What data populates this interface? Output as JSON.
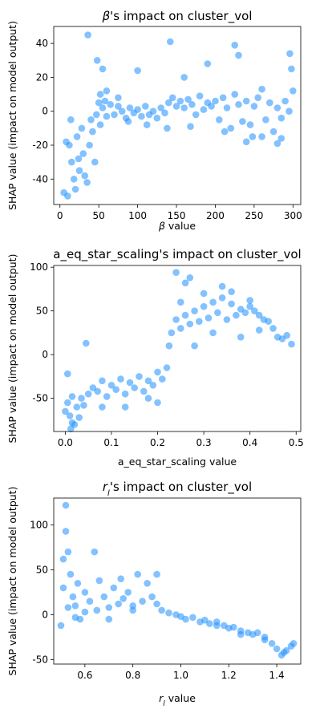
{
  "page": {
    "ylabel": "SHAP value (impact on model output)"
  },
  "chart_data": [
    {
      "type": "scatter",
      "title_prefix": "β",
      "title_suffix": "'s impact on cluster_vol",
      "xlabel_prefix": "β",
      "xlabel_suffix": " value",
      "ylabel": "SHAP value (impact on model output)",
      "xlim": [
        -8,
        310
      ],
      "ylim": [
        -55,
        50
      ],
      "xticks": [
        0,
        50,
        100,
        150,
        200,
        250,
        300
      ],
      "yticks": [
        -40,
        -20,
        0,
        20,
        40
      ],
      "grid": false,
      "marker_color": "#1e90ff",
      "points": [
        [
          5,
          -48
        ],
        [
          10,
          -50
        ],
        [
          12,
          -20
        ],
        [
          15,
          -30
        ],
        [
          18,
          -40
        ],
        [
          20,
          -46
        ],
        [
          22,
          -15
        ],
        [
          25,
          -35
        ],
        [
          28,
          -10
        ],
        [
          30,
          -25
        ],
        [
          32,
          -38
        ],
        [
          35,
          -42
        ],
        [
          38,
          -20
        ],
        [
          40,
          -5
        ],
        [
          42,
          -12
        ],
        [
          45,
          -30
        ],
        [
          47,
          -2
        ],
        [
          50,
          5
        ],
        [
          52,
          -8
        ],
        [
          55,
          2
        ],
        [
          58,
          6
        ],
        [
          60,
          -3
        ],
        [
          65,
          4
        ],
        [
          70,
          -2
        ],
        [
          75,
          3
        ],
        [
          80,
          0
        ],
        [
          85,
          -4
        ],
        [
          90,
          2
        ],
        [
          95,
          -1
        ],
        [
          100,
          1
        ],
        [
          105,
          -3
        ],
        [
          110,
          3
        ],
        [
          115,
          -2
        ],
        [
          120,
          0
        ],
        [
          125,
          -4
        ],
        [
          130,
          2
        ],
        [
          135,
          -1
        ],
        [
          140,
          5
        ],
        [
          145,
          8
        ],
        [
          150,
          3
        ],
        [
          155,
          6
        ],
        [
          160,
          2
        ],
        [
          165,
          7
        ],
        [
          170,
          4
        ],
        [
          175,
          -2
        ],
        [
          180,
          9
        ],
        [
          185,
          1
        ],
        [
          190,
          5
        ],
        [
          195,
          3
        ],
        [
          200,
          6
        ],
        [
          205,
          -5
        ],
        [
          210,
          8
        ],
        [
          215,
          2
        ],
        [
          220,
          -10
        ],
        [
          225,
          10
        ],
        [
          230,
          4
        ],
        [
          235,
          -6
        ],
        [
          240,
          6
        ],
        [
          245,
          -8
        ],
        [
          250,
          3
        ],
        [
          255,
          8
        ],
        [
          260,
          -15
        ],
        [
          265,
          -5
        ],
        [
          270,
          5
        ],
        [
          275,
          -12
        ],
        [
          280,
          2
        ],
        [
          285,
          -4
        ],
        [
          290,
          6
        ],
        [
          295,
          0
        ],
        [
          300,
          12
        ],
        [
          8,
          -18
        ],
        [
          14,
          -5
        ],
        [
          24,
          -28
        ],
        [
          36,
          45
        ],
        [
          48,
          30
        ],
        [
          55,
          25
        ],
        [
          100,
          24
        ],
        [
          142,
          41
        ],
        [
          160,
          20
        ],
        [
          190,
          28
        ],
        [
          225,
          39
        ],
        [
          230,
          33
        ],
        [
          260,
          13
        ],
        [
          296,
          34
        ],
        [
          298,
          25
        ],
        [
          280,
          -19
        ],
        [
          285,
          -16
        ],
        [
          240,
          -18
        ],
        [
          52,
          10
        ],
        [
          60,
          12
        ],
        [
          75,
          8
        ],
        [
          88,
          -6
        ],
        [
          112,
          -8
        ],
        [
          138,
          -10
        ],
        [
          168,
          -9
        ],
        [
          212,
          -12
        ],
        [
          248,
          -15
        ]
      ]
    },
    {
      "type": "scatter",
      "title_prefix": "a_eq_star_scaling",
      "title_suffix": "'s impact on cluster_vol",
      "xlabel_prefix": "a_eq_star_scaling",
      "xlabel_suffix": " value",
      "ylabel": "SHAP value (impact on model output)",
      "xlim": [
        -0.025,
        0.51
      ],
      "ylim": [
        -88,
        102
      ],
      "xticks": [
        0.0,
        0.1,
        0.2,
        0.3,
        0.4,
        0.5
      ],
      "yticks": [
        -50,
        0,
        50,
        100
      ],
      "grid": false,
      "marker_color": "#1e90ff",
      "points": [
        [
          0.0,
          -65
        ],
        [
          0.005,
          -55
        ],
        [
          0.01,
          -70
        ],
        [
          0.015,
          -48
        ],
        [
          0.02,
          -80
        ],
        [
          0.025,
          -60
        ],
        [
          0.03,
          -72
        ],
        [
          0.035,
          -50
        ],
        [
          0.04,
          -58
        ],
        [
          0.045,
          13
        ],
        [
          0.05,
          -45
        ],
        [
          0.06,
          -38
        ],
        [
          0.07,
          -42
        ],
        [
          0.08,
          -30
        ],
        [
          0.09,
          -48
        ],
        [
          0.1,
          -35
        ],
        [
          0.11,
          -40
        ],
        [
          0.12,
          -28
        ],
        [
          0.13,
          -45
        ],
        [
          0.14,
          -32
        ],
        [
          0.15,
          -38
        ],
        [
          0.16,
          -25
        ],
        [
          0.17,
          -42
        ],
        [
          0.18,
          -30
        ],
        [
          0.19,
          -35
        ],
        [
          0.2,
          -20
        ],
        [
          0.21,
          -28
        ],
        [
          0.22,
          -15
        ],
        [
          0.225,
          10
        ],
        [
          0.23,
          25
        ],
        [
          0.24,
          40
        ],
        [
          0.25,
          30
        ],
        [
          0.26,
          45
        ],
        [
          0.27,
          35
        ],
        [
          0.28,
          50
        ],
        [
          0.29,
          38
        ],
        [
          0.3,
          55
        ],
        [
          0.31,
          42
        ],
        [
          0.32,
          60
        ],
        [
          0.33,
          48
        ],
        [
          0.34,
          65
        ],
        [
          0.35,
          40
        ],
        [
          0.36,
          58
        ],
        [
          0.37,
          45
        ],
        [
          0.38,
          52
        ],
        [
          0.39,
          48
        ],
        [
          0.4,
          55
        ],
        [
          0.41,
          50
        ],
        [
          0.42,
          45
        ],
        [
          0.43,
          40
        ],
        [
          0.44,
          38
        ],
        [
          0.45,
          30
        ],
        [
          0.46,
          20
        ],
        [
          0.47,
          18
        ],
        [
          0.48,
          22
        ],
        [
          0.49,
          12
        ],
        [
          0.24,
          94
        ],
        [
          0.26,
          82
        ],
        [
          0.34,
          78
        ],
        [
          0.005,
          -22
        ],
        [
          0.012,
          -85
        ],
        [
          0.015,
          -78
        ],
        [
          0.13,
          -60
        ],
        [
          0.2,
          -55
        ],
        [
          0.28,
          10
        ],
        [
          0.32,
          25
        ],
        [
          0.38,
          20
        ],
        [
          0.42,
          28
        ],
        [
          0.3,
          70
        ],
        [
          0.36,
          72
        ],
        [
          0.4,
          62
        ],
        [
          0.25,
          60
        ],
        [
          0.27,
          88
        ],
        [
          0.18,
          -50
        ],
        [
          0.08,
          -60
        ]
      ]
    },
    {
      "type": "scatter",
      "title_prefix": "r",
      "title_sub": "l",
      "title_suffix": "'s impact on cluster_vol",
      "xlabel_prefix": "r",
      "xlabel_sub": "l",
      "xlabel_suffix": " value",
      "ylabel": "SHAP value (impact on model output)",
      "xlim": [
        0.47,
        1.5
      ],
      "ylim": [
        -55,
        130
      ],
      "xticks": [
        0.6,
        0.8,
        1.0,
        1.2,
        1.4
      ],
      "yticks": [
        -50,
        0,
        50,
        100
      ],
      "grid": false,
      "marker_color": "#1e90ff",
      "points": [
        [
          0.5,
          -12
        ],
        [
          0.51,
          30
        ],
        [
          0.52,
          122
        ],
        [
          0.52,
          93
        ],
        [
          0.53,
          70
        ],
        [
          0.54,
          45
        ],
        [
          0.55,
          20
        ],
        [
          0.56,
          10
        ],
        [
          0.57,
          35
        ],
        [
          0.58,
          -5
        ],
        [
          0.6,
          25
        ],
        [
          0.62,
          15
        ],
        [
          0.64,
          70
        ],
        [
          0.65,
          5
        ],
        [
          0.66,
          38
        ],
        [
          0.68,
          20
        ],
        [
          0.7,
          8
        ],
        [
          0.72,
          30
        ],
        [
          0.74,
          12
        ],
        [
          0.75,
          40
        ],
        [
          0.76,
          18
        ],
        [
          0.78,
          25
        ],
        [
          0.8,
          10
        ],
        [
          0.82,
          45
        ],
        [
          0.84,
          15
        ],
        [
          0.86,
          35
        ],
        [
          0.88,
          20
        ],
        [
          0.9,
          45
        ],
        [
          0.92,
          5
        ],
        [
          0.95,
          2
        ],
        [
          0.98,
          0
        ],
        [
          1.0,
          -2
        ],
        [
          1.02,
          -5
        ],
        [
          1.05,
          -3
        ],
        [
          1.08,
          -8
        ],
        [
          1.1,
          -6
        ],
        [
          1.12,
          -10
        ],
        [
          1.15,
          -8
        ],
        [
          1.18,
          -12
        ],
        [
          1.2,
          -15
        ],
        [
          1.22,
          -14
        ],
        [
          1.25,
          -18
        ],
        [
          1.28,
          -20
        ],
        [
          1.3,
          -22
        ],
        [
          1.32,
          -20
        ],
        [
          1.35,
          -25
        ],
        [
          1.38,
          -32
        ],
        [
          1.4,
          -38
        ],
        [
          1.42,
          -45
        ],
        [
          1.44,
          -40
        ],
        [
          1.46,
          -35
        ],
        [
          1.47,
          -32
        ],
        [
          0.51,
          62
        ],
        [
          0.53,
          8
        ],
        [
          0.56,
          -3
        ],
        [
          0.6,
          3
        ],
        [
          0.7,
          -5
        ],
        [
          0.8,
          5
        ],
        [
          0.9,
          12
        ],
        [
          1.15,
          -12
        ],
        [
          1.25,
          -22
        ],
        [
          1.35,
          -28
        ],
        [
          1.43,
          -42
        ]
      ]
    }
  ]
}
